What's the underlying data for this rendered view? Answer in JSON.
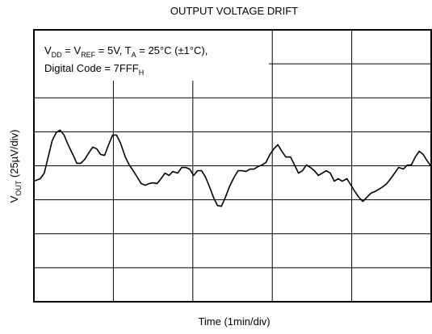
{
  "chart_data": {
    "type": "line",
    "title": "OUTPUT VOLTAGE DRIFT",
    "annotation": [
      [
        "V",
        "DD",
        " = V",
        "REF",
        " = 5V, T",
        "A",
        " = 25°C (±1°C),"
      ],
      [
        "Digital Code = 7FFF",
        "H"
      ]
    ],
    "xlabel": "Time (1min/div)",
    "ylabel": [
      "V",
      "OUT",
      " (25µV/div)"
    ],
    "x": [
      0,
      0.08,
      0.13,
      0.18,
      0.23,
      0.28,
      0.33,
      0.38,
      0.43,
      0.49,
      0.54,
      0.59,
      0.64,
      0.69,
      0.74,
      0.79,
      0.84,
      0.89,
      0.94,
      0.99,
      1.04,
      1.09,
      1.15,
      1.2,
      1.25,
      1.3,
      1.35,
      1.4,
      1.45,
      1.5,
      1.55,
      1.6,
      1.65,
      1.7,
      1.75,
      1.81,
      1.86,
      1.91,
      1.96,
      2.01,
      2.06,
      2.11,
      2.16,
      2.21,
      2.26,
      2.31,
      2.36,
      2.41,
      2.46,
      2.52,
      2.57,
      2.62,
      2.67,
      2.72,
      2.77,
      2.82,
      2.87,
      2.92,
      2.97,
      3.02,
      3.07,
      3.12,
      3.17,
      3.23,
      3.28,
      3.33,
      3.38,
      3.43,
      3.48,
      3.53,
      3.58,
      3.63,
      3.68,
      3.73,
      3.78,
      3.83,
      3.88,
      3.94,
      3.99,
      4.04,
      4.09,
      4.14,
      4.19,
      4.24,
      4.29,
      4.34,
      4.39,
      4.44,
      4.49,
      4.54,
      4.59,
      4.65,
      4.7,
      4.75,
      4.8,
      4.85,
      4.9,
      4.95,
      5.0
    ],
    "values": [
      -11.3,
      -9.5,
      -5.4,
      6.5,
      18.5,
      24.4,
      26.2,
      22.6,
      15.5,
      8.3,
      1.8,
      1.8,
      4.8,
      9.5,
      13.7,
      12.5,
      8.3,
      7.7,
      15.5,
      22.6,
      22.6,
      16.7,
      6.5,
      0.6,
      -3.6,
      -8.3,
      -13.1,
      -14.3,
      -13.1,
      -12.5,
      -13.1,
      -9.5,
      -5.4,
      -7.1,
      -4.2,
      -5.4,
      -1.2,
      -1.2,
      -2.4,
      -7.1,
      -3.6,
      -3.6,
      -8.3,
      -15.5,
      -23.2,
      -29.2,
      -29.8,
      -23.2,
      -15.5,
      -8.3,
      -3.6,
      -3.6,
      -4.2,
      -2.4,
      -2.4,
      -0.6,
      0.6,
      2.4,
      8.3,
      12.5,
      15.5,
      10.7,
      6.5,
      6.5,
      0.6,
      -5.4,
      -3.6,
      0.6,
      -1.2,
      -3.6,
      -7.1,
      -5.4,
      -3.6,
      -5.4,
      -11.3,
      -9.5,
      -11.3,
      -9.5,
      -14.3,
      -19.0,
      -23.2,
      -26.2,
      -23.2,
      -20.2,
      -19.0,
      -17.3,
      -15.5,
      -13.1,
      -9.5,
      -5.4,
      -1.2,
      -2.4,
      0.6,
      0.6,
      6.5,
      10.7,
      8.3,
      3.6,
      -0.6
    ],
    "color": "#000000",
    "xlim": [
      0,
      5
    ],
    "xticks": [
      0,
      1,
      2,
      3,
      4,
      5
    ],
    "ylim": [
      -100,
      100
    ],
    "yticks": [
      -100,
      -75,
      -50,
      -25,
      0,
      25,
      50,
      75,
      100
    ],
    "grid": true
  }
}
